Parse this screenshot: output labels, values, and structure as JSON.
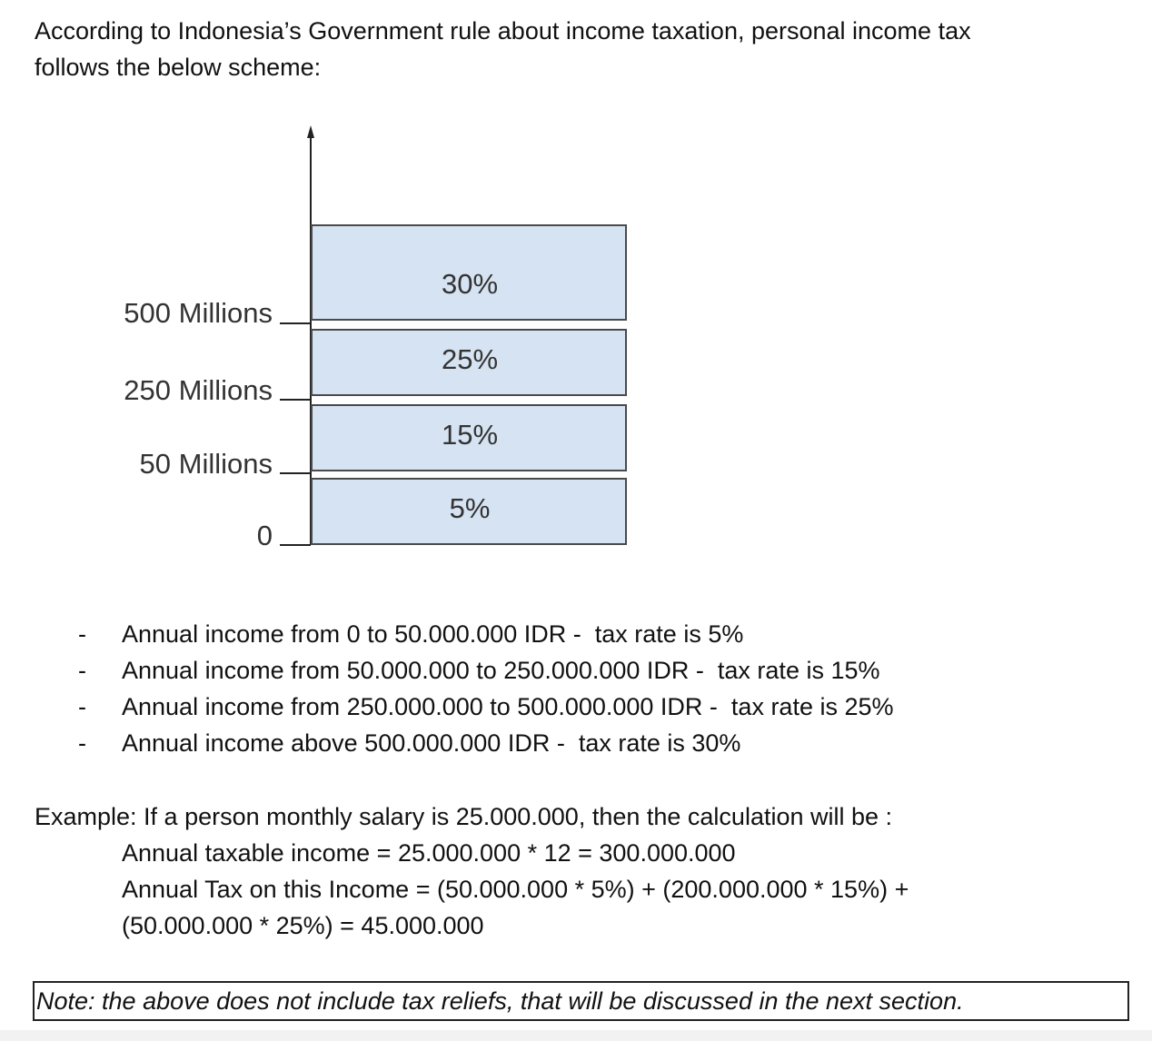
{
  "intro": {
    "line1": "According to Indonesia’s Government rule about income taxation, personal income tax",
    "line2": "follows the below scheme:"
  },
  "diagram": {
    "axis_labels": [
      "500 Millions",
      "250 Millions",
      "50 Millions",
      "0"
    ],
    "brackets": [
      {
        "rate": "30%",
        "lower": 500,
        "upper": null
      },
      {
        "rate": "25%",
        "lower": 250,
        "upper": 500
      },
      {
        "rate": "15%",
        "lower": 50,
        "upper": 250
      },
      {
        "rate": "5%",
        "lower": 0,
        "upper": 50
      }
    ],
    "colors": {
      "fill": "#d6e3f2",
      "stroke": "#4a4a4a"
    }
  },
  "rates_list": [
    {
      "dash": "-",
      "text": "Annual income from 0 to 50.000.000 IDR -  tax rate is 5%"
    },
    {
      "dash": "-",
      "text": "Annual income from 50.000.000 to 250.000.000 IDR -  tax rate is 15%"
    },
    {
      "dash": "-",
      "text": "Annual income from 250.000.000 to 500.000.000 IDR -  tax rate is 25%"
    },
    {
      "dash": "-",
      "text": "Annual income above 500.000.000 IDR -  tax rate is 30%"
    }
  ],
  "example": {
    "intro": "Example: If a person monthly salary is 25.000.000, then the calculation will be :",
    "annual_income": "Annual taxable income = 25.000.000 * 12 = 300.000.000",
    "annual_tax_1": "Annual Tax on this Income = (50.000.000 * 5%) + (200.000.000 * 15%) +",
    "annual_tax_2": "(50.000.000 * 25%) = 45.000.000"
  },
  "note": "Note: the above does not include tax reliefs, that will be discussed in the next section."
}
